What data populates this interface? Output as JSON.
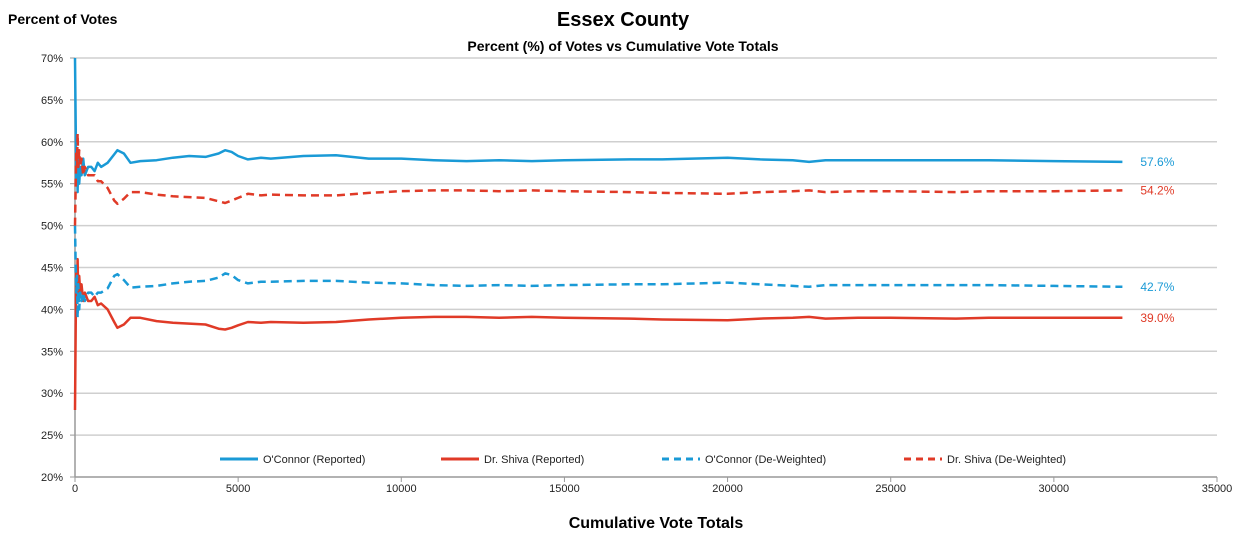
{
  "chart_data": {
    "type": "line",
    "title": "Essex County",
    "subtitle": "Percent (%) of Votes vs Cumulative Vote Totals",
    "ylabel": "Percent of Votes",
    "xlabel": "Cumulative Vote Totals",
    "xlim": [
      0,
      35000
    ],
    "ylim": [
      20,
      70
    ],
    "x_ticks": [
      0,
      5000,
      10000,
      15000,
      20000,
      25000,
      30000,
      35000
    ],
    "x_tick_labels": [
      "0",
      "5000",
      "10000",
      "15000",
      "20000",
      "25000",
      "30000",
      "35000"
    ],
    "y_ticks": [
      20,
      25,
      30,
      35,
      40,
      45,
      50,
      55,
      60,
      65,
      70
    ],
    "y_tick_labels": [
      "20%",
      "25%",
      "30%",
      "35%",
      "40%",
      "45%",
      "50%",
      "55%",
      "60%",
      "65%",
      "70%"
    ],
    "grid": true,
    "legend_position": "bottom",
    "series": [
      {
        "name": "O'Connor (Reported)",
        "color": "#1a9ad6",
        "dash": "solid",
        "end_label": "57.6%",
        "points": [
          [
            0,
            70
          ],
          [
            20,
            62
          ],
          [
            40,
            55
          ],
          [
            60,
            58
          ],
          [
            80,
            54
          ],
          [
            100,
            59
          ],
          [
            130,
            55
          ],
          [
            160,
            57
          ],
          [
            200,
            56
          ],
          [
            250,
            58
          ],
          [
            300,
            56
          ],
          [
            400,
            57
          ],
          [
            500,
            57
          ],
          [
            600,
            56.5
          ],
          [
            700,
            57.5
          ],
          [
            800,
            57
          ],
          [
            1000,
            57.5
          ],
          [
            1200,
            58.5
          ],
          [
            1300,
            59
          ],
          [
            1500,
            58.6
          ],
          [
            1700,
            57.5
          ],
          [
            2000,
            57.7
          ],
          [
            2500,
            57.8
          ],
          [
            3000,
            58.1
          ],
          [
            3500,
            58.3
          ],
          [
            4000,
            58.2
          ],
          [
            4400,
            58.6
          ],
          [
            4600,
            59
          ],
          [
            4800,
            58.8
          ],
          [
            5000,
            58.3
          ],
          [
            5300,
            57.9
          ],
          [
            5700,
            58.1
          ],
          [
            6000,
            58
          ],
          [
            7000,
            58.3
          ],
          [
            8000,
            58.4
          ],
          [
            9000,
            58
          ],
          [
            10000,
            58
          ],
          [
            11000,
            57.8
          ],
          [
            12000,
            57.7
          ],
          [
            13000,
            57.8
          ],
          [
            14000,
            57.7
          ],
          [
            15000,
            57.8
          ],
          [
            17000,
            57.9
          ],
          [
            18000,
            57.9
          ],
          [
            20000,
            58.1
          ],
          [
            21000,
            57.9
          ],
          [
            22000,
            57.8
          ],
          [
            22500,
            57.6
          ],
          [
            23000,
            57.8
          ],
          [
            24000,
            57.8
          ],
          [
            25000,
            57.8
          ],
          [
            27000,
            57.8
          ],
          [
            28000,
            57.8
          ],
          [
            30000,
            57.7
          ],
          [
            32100,
            57.6
          ]
        ]
      },
      {
        "name": "Dr. Shiva (Reported)",
        "color": "#e03a27",
        "dash": "solid",
        "end_label": "39.0%",
        "points": [
          [
            0,
            28
          ],
          [
            20,
            38
          ],
          [
            40,
            45
          ],
          [
            60,
            42
          ],
          [
            80,
            46
          ],
          [
            100,
            41
          ],
          [
            130,
            44
          ],
          [
            160,
            42
          ],
          [
            200,
            43
          ],
          [
            250,
            41
          ],
          [
            300,
            42
          ],
          [
            400,
            41
          ],
          [
            500,
            41
          ],
          [
            600,
            41.5
          ],
          [
            700,
            40.5
          ],
          [
            800,
            40.7
          ],
          [
            1000,
            40
          ],
          [
            1200,
            38.5
          ],
          [
            1300,
            37.8
          ],
          [
            1500,
            38.2
          ],
          [
            1700,
            39
          ],
          [
            2000,
            39
          ],
          [
            2500,
            38.6
          ],
          [
            3000,
            38.4
          ],
          [
            3500,
            38.3
          ],
          [
            4000,
            38.2
          ],
          [
            4400,
            37.7
          ],
          [
            4600,
            37.6
          ],
          [
            4800,
            37.8
          ],
          [
            5000,
            38.1
          ],
          [
            5300,
            38.5
          ],
          [
            5700,
            38.4
          ],
          [
            6000,
            38.5
          ],
          [
            7000,
            38.4
          ],
          [
            8000,
            38.5
          ],
          [
            9000,
            38.8
          ],
          [
            10000,
            39
          ],
          [
            11000,
            39.1
          ],
          [
            12000,
            39.1
          ],
          [
            13000,
            39
          ],
          [
            14000,
            39.1
          ],
          [
            15000,
            39
          ],
          [
            17000,
            38.9
          ],
          [
            18000,
            38.8
          ],
          [
            20000,
            38.7
          ],
          [
            21000,
            38.9
          ],
          [
            22000,
            39
          ],
          [
            22500,
            39.1
          ],
          [
            23000,
            38.9
          ],
          [
            24000,
            39
          ],
          [
            25000,
            39
          ],
          [
            27000,
            38.9
          ],
          [
            28000,
            39
          ],
          [
            30000,
            39
          ],
          [
            32100,
            39
          ]
        ]
      },
      {
        "name": "O'Connor (De-Weighted)",
        "color": "#1a9ad6",
        "dash": "dashed",
        "end_label": "42.7%",
        "points": [
          [
            0,
            50
          ],
          [
            20,
            45
          ],
          [
            40,
            42
          ],
          [
            60,
            44
          ],
          [
            80,
            39
          ],
          [
            100,
            43
          ],
          [
            130,
            40
          ],
          [
            160,
            42
          ],
          [
            200,
            41
          ],
          [
            250,
            42
          ],
          [
            300,
            41
          ],
          [
            400,
            42
          ],
          [
            500,
            42
          ],
          [
            600,
            41.5
          ],
          [
            700,
            42
          ],
          [
            800,
            42
          ],
          [
            1000,
            42.5
          ],
          [
            1200,
            44
          ],
          [
            1300,
            44.2
          ],
          [
            1500,
            43.5
          ],
          [
            1700,
            42.6
          ],
          [
            2000,
            42.7
          ],
          [
            2500,
            42.8
          ],
          [
            3000,
            43.1
          ],
          [
            3500,
            43.3
          ],
          [
            4000,
            43.4
          ],
          [
            4400,
            43.8
          ],
          [
            4600,
            44.3
          ],
          [
            4800,
            44.1
          ],
          [
            5000,
            43.5
          ],
          [
            5300,
            43.1
          ],
          [
            5700,
            43.3
          ],
          [
            6000,
            43.3
          ],
          [
            7000,
            43.4
          ],
          [
            8000,
            43.4
          ],
          [
            9000,
            43.2
          ],
          [
            10000,
            43.1
          ],
          [
            11000,
            42.9
          ],
          [
            12000,
            42.8
          ],
          [
            13000,
            42.9
          ],
          [
            14000,
            42.8
          ],
          [
            15000,
            42.9
          ],
          [
            17000,
            43
          ],
          [
            18000,
            43
          ],
          [
            20000,
            43.2
          ],
          [
            21000,
            43
          ],
          [
            22000,
            42.8
          ],
          [
            22500,
            42.7
          ],
          [
            23000,
            42.9
          ],
          [
            24000,
            42.9
          ],
          [
            25000,
            42.9
          ],
          [
            27000,
            42.9
          ],
          [
            28000,
            42.9
          ],
          [
            30000,
            42.8
          ],
          [
            32100,
            42.7
          ]
        ]
      },
      {
        "name": "Dr. Shiva (De-Weighted)",
        "color": "#e03a27",
        "dash": "dashed",
        "end_label": "54.2%",
        "points": [
          [
            0,
            50
          ],
          [
            20,
            55
          ],
          [
            40,
            59
          ],
          [
            60,
            57
          ],
          [
            80,
            61
          ],
          [
            100,
            57
          ],
          [
            130,
            59
          ],
          [
            160,
            57
          ],
          [
            200,
            58
          ],
          [
            250,
            56
          ],
          [
            300,
            57
          ],
          [
            400,
            56
          ],
          [
            500,
            56
          ],
          [
            600,
            56
          ],
          [
            700,
            55.3
          ],
          [
            800,
            55.3
          ],
          [
            1000,
            54.5
          ],
          [
            1200,
            53
          ],
          [
            1300,
            52.6
          ],
          [
            1500,
            53.2
          ],
          [
            1700,
            54
          ],
          [
            2000,
            54
          ],
          [
            2500,
            53.7
          ],
          [
            3000,
            53.5
          ],
          [
            3500,
            53.4
          ],
          [
            4000,
            53.3
          ],
          [
            4400,
            52.9
          ],
          [
            4600,
            52.7
          ],
          [
            4800,
            53
          ],
          [
            5000,
            53.3
          ],
          [
            5300,
            53.8
          ],
          [
            5700,
            53.6
          ],
          [
            6000,
            53.7
          ],
          [
            7000,
            53.6
          ],
          [
            8000,
            53.6
          ],
          [
            9000,
            53.9
          ],
          [
            10000,
            54.1
          ],
          [
            11000,
            54.2
          ],
          [
            12000,
            54.2
          ],
          [
            13000,
            54.1
          ],
          [
            14000,
            54.2
          ],
          [
            15000,
            54.1
          ],
          [
            17000,
            54
          ],
          [
            18000,
            53.9
          ],
          [
            20000,
            53.8
          ],
          [
            21000,
            54
          ],
          [
            22000,
            54.1
          ],
          [
            22500,
            54.2
          ],
          [
            23000,
            54
          ],
          [
            24000,
            54.1
          ],
          [
            25000,
            54.1
          ],
          [
            27000,
            54
          ],
          [
            28000,
            54.1
          ],
          [
            30000,
            54.1
          ],
          [
            32100,
            54.2
          ]
        ]
      }
    ]
  }
}
